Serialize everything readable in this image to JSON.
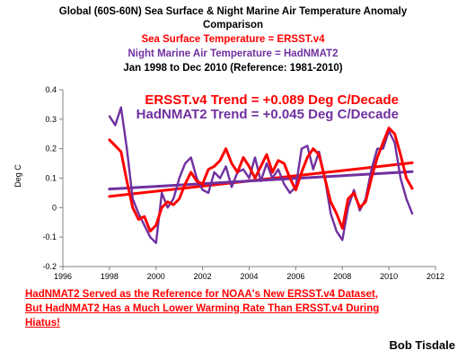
{
  "titles": {
    "line1": "Global (60S-60N) Sea Surface & Night Marine Air Temperature Anomaly",
    "line2": "Comparison",
    "line3": "Sea Surface Temperature = ERSST.v4",
    "line4": "Night Marine Air Temperature = HadNMAT2",
    "line5": "Jan 1998 to Dec 2010 (Reference: 1981-2010)"
  },
  "colors": {
    "ersst": "#ff0000",
    "hadnmat": "#7030a0",
    "title_black": "#000000",
    "axis": "#808080"
  },
  "footnote": {
    "line1": "HadNMAT2 Served as the Reference for NOAA's New ERSST.v4 Dataset,",
    "line2": "But HadNMAT2 Has a Much Lower Warming Rate Than ERSST.v4 During",
    "line3": "Hiatus!"
  },
  "author": "Bob Tisdale",
  "chart_data": {
    "type": "line",
    "ylabel": "Deg C",
    "xlabel": "",
    "xlim": [
      1996,
      2012
    ],
    "ylim": [
      -0.2,
      0.4
    ],
    "x_ticks": [
      "1996",
      "1998",
      "2000",
      "2002",
      "2004",
      "2006",
      "2008",
      "2010",
      "2012"
    ],
    "y_ticks": [
      "-0.2",
      "-0.1",
      "0",
      "0.1",
      "0.2",
      "0.3",
      "0.4"
    ],
    "annotations": [
      "ERSST.v4 Trend = +0.089 Deg C/Decade",
      "HadNMAT2 Trend = +0.045 Deg C/Decade"
    ],
    "series": [
      {
        "name": "ERSST.v4",
        "color": "#ff0000",
        "x": [
          1998.0,
          1998.25,
          1998.5,
          1998.75,
          1999.0,
          1999.25,
          1999.5,
          1999.75,
          2000.0,
          2000.25,
          2000.5,
          2000.75,
          2001.0,
          2001.25,
          2001.5,
          2001.75,
          2002.0,
          2002.25,
          2002.5,
          2002.75,
          2003.0,
          2003.25,
          2003.5,
          2003.75,
          2004.0,
          2004.25,
          2004.5,
          2004.75,
          2005.0,
          2005.25,
          2005.5,
          2005.75,
          2006.0,
          2006.25,
          2006.5,
          2006.75,
          2007.0,
          2007.25,
          2007.5,
          2007.75,
          2008.0,
          2008.25,
          2008.5,
          2008.75,
          2009.0,
          2009.25,
          2009.5,
          2009.75,
          2010.0,
          2010.25,
          2010.5,
          2010.75,
          2011.0
        ],
        "values": [
          0.23,
          0.21,
          0.19,
          0.09,
          0.0,
          -0.04,
          -0.03,
          -0.08,
          -0.06,
          0.0,
          0.02,
          0.01,
          0.03,
          0.08,
          0.12,
          0.09,
          0.08,
          0.13,
          0.14,
          0.16,
          0.2,
          0.15,
          0.12,
          0.17,
          0.14,
          0.1,
          0.14,
          0.18,
          0.12,
          0.16,
          0.15,
          0.1,
          0.06,
          0.12,
          0.17,
          0.2,
          0.18,
          0.1,
          0.02,
          -0.02,
          -0.07,
          0.03,
          0.05,
          0.0,
          0.02,
          0.1,
          0.17,
          0.22,
          0.27,
          0.25,
          0.18,
          0.1,
          0.065
        ]
      },
      {
        "name": "HadNMAT2",
        "color": "#7030a0",
        "x": [
          1998.0,
          1998.25,
          1998.5,
          1998.75,
          1999.0,
          1999.25,
          1999.5,
          1999.75,
          2000.0,
          2000.25,
          2000.5,
          2000.75,
          2001.0,
          2001.25,
          2001.5,
          2001.75,
          2002.0,
          2002.25,
          2002.5,
          2002.75,
          2003.0,
          2003.25,
          2003.5,
          2003.75,
          2004.0,
          2004.25,
          2004.5,
          2004.75,
          2005.0,
          2005.25,
          2005.5,
          2005.75,
          2006.0,
          2006.25,
          2006.5,
          2006.75,
          2007.0,
          2007.25,
          2007.5,
          2007.75,
          2008.0,
          2008.25,
          2008.5,
          2008.75,
          2009.0,
          2009.25,
          2009.5,
          2009.75,
          2010.0,
          2010.25,
          2010.5,
          2010.75,
          2011.0
        ],
        "values": [
          0.31,
          0.28,
          0.34,
          0.2,
          0.03,
          -0.02,
          -0.06,
          -0.1,
          -0.12,
          0.05,
          0.0,
          0.03,
          0.1,
          0.15,
          0.17,
          0.1,
          0.06,
          0.05,
          0.12,
          0.1,
          0.14,
          0.07,
          0.12,
          0.13,
          0.1,
          0.17,
          0.09,
          0.15,
          0.1,
          0.13,
          0.08,
          0.05,
          0.07,
          0.2,
          0.21,
          0.13,
          0.19,
          0.1,
          -0.02,
          -0.08,
          -0.11,
          0.0,
          0.06,
          -0.01,
          0.03,
          0.13,
          0.2,
          0.2,
          0.26,
          0.22,
          0.1,
          0.03,
          -0.02
        ]
      }
    ],
    "trends": [
      {
        "name": "ERSST.v4 trend",
        "color": "#ff0000",
        "x": [
          1998.0,
          2011.0
        ],
        "values": [
          0.038,
          0.152
        ]
      },
      {
        "name": "HadNMAT2 trend",
        "color": "#7030a0",
        "x": [
          1998.0,
          2011.0
        ],
        "values": [
          0.063,
          0.122
        ]
      }
    ]
  }
}
